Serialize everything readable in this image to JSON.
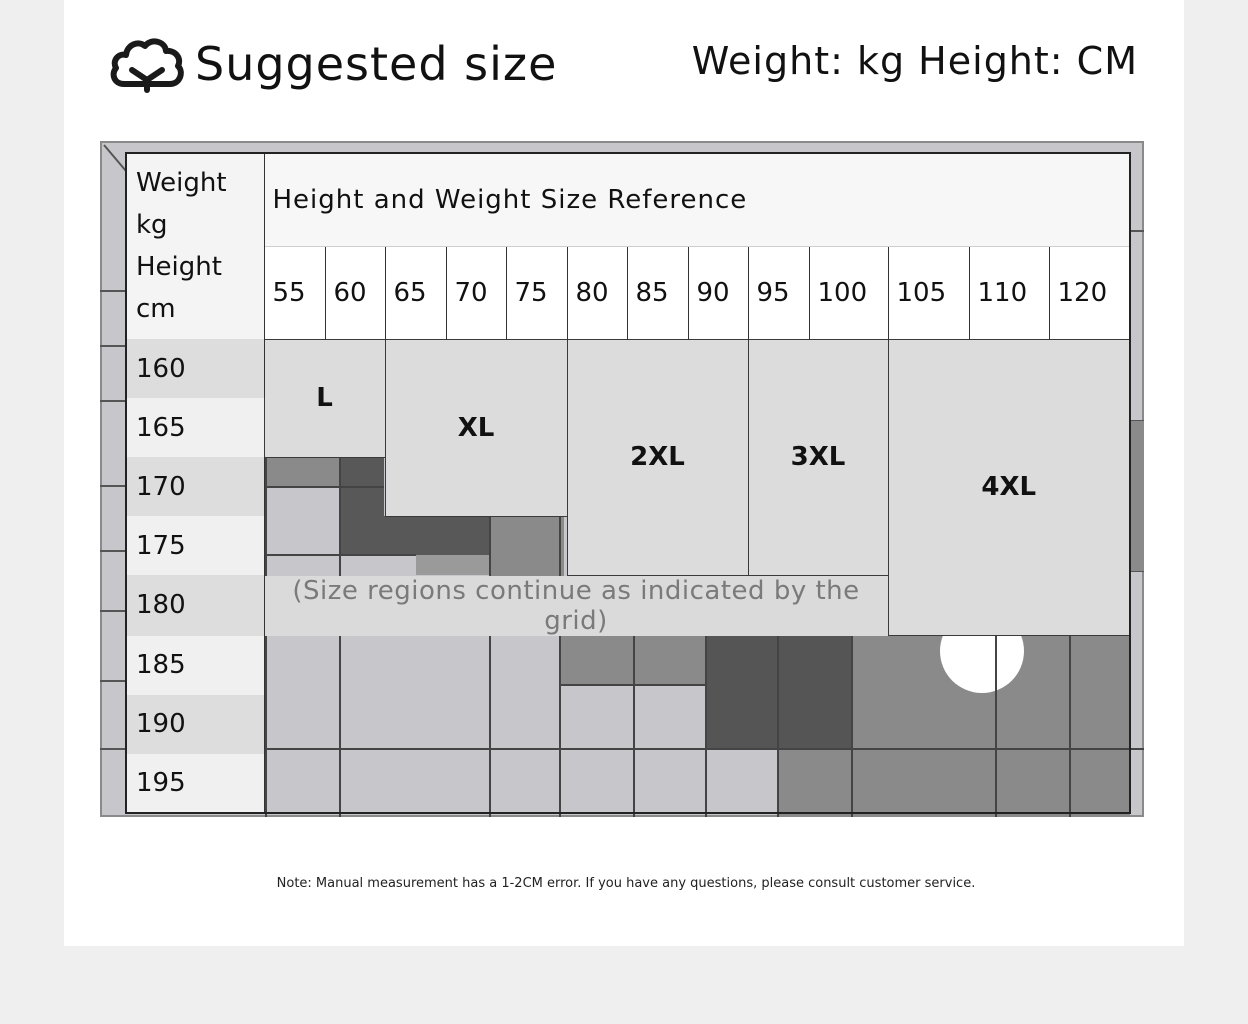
{
  "header": {
    "title": "Suggested size",
    "units": "Weight: kg Height: CM",
    "icon": "cloud-icon"
  },
  "table": {
    "corner_lines": [
      "Weight",
      "kg",
      "Height",
      "cm"
    ],
    "heading": "Height and Weight Size Reference",
    "weights": [
      "55",
      "60",
      "65",
      "70",
      "75",
      "80",
      "85",
      "90",
      "95",
      "100",
      "105",
      "110",
      "120"
    ],
    "heights": [
      "160",
      "165",
      "170",
      "175",
      "180",
      "185",
      "190",
      "195"
    ],
    "sizes": {
      "l": "L",
      "xl": "XL",
      "xxl": "2XL",
      "xxxl": "3XL",
      "xxxxl": "4XL"
    },
    "continuation": "(Size regions continue as indicated by the grid)"
  },
  "footer": {
    "note": "Note: Manual measurement has a 1-2CM error. If you have any questions, please consult customer service."
  }
}
